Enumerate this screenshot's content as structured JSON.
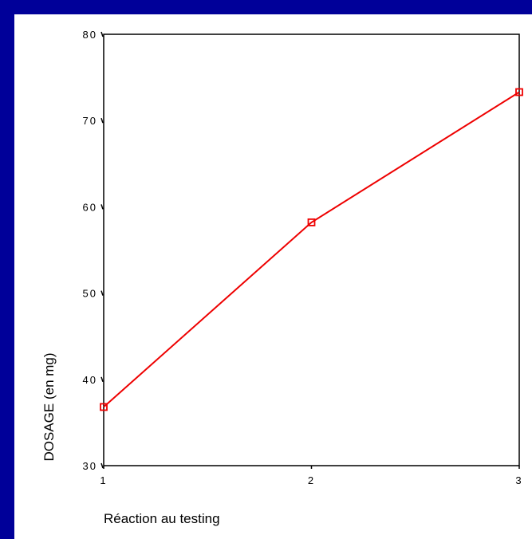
{
  "chart_data": {
    "type": "line",
    "title": "",
    "xlabel": "Réaction au testing",
    "ylabel": "DOSAGE (en mg)",
    "x": [
      1,
      2,
      3
    ],
    "xticks": [
      "1",
      "2",
      "3"
    ],
    "yticks": [
      "30",
      "40",
      "50",
      "60",
      "70",
      "80"
    ],
    "xlim": [
      1,
      3
    ],
    "ylim": [
      30,
      80
    ],
    "grid": false,
    "series": [
      {
        "values": [
          36.8,
          58.2,
          73.3
        ],
        "color": "#ee0000",
        "marker": "square"
      }
    ]
  }
}
